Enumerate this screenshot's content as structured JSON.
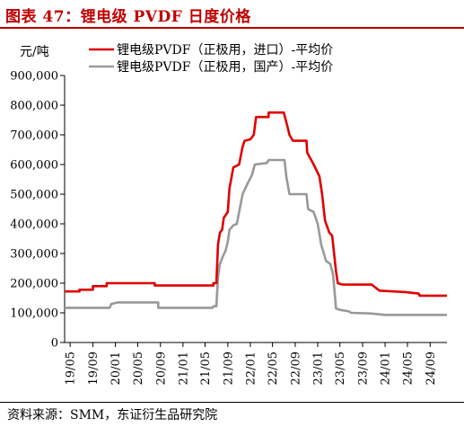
{
  "figure": {
    "title": "图表 47：锂电级 PVDF 日度价格",
    "source": "资料来源：SMM，东证衍生品研究院"
  },
  "chart_data": {
    "type": "line",
    "title": "图表 47：锂电级 PVDF 日度价格",
    "ylabel": "元/吨",
    "ylim": [
      0,
      900000
    ],
    "yticks": [
      0,
      100000,
      200000,
      300000,
      400000,
      500000,
      600000,
      700000,
      800000,
      900000
    ],
    "ytick_labels": [
      "0",
      "100,000",
      "200,000",
      "300,000",
      "400,000",
      "500,000",
      "600,000",
      "700,000",
      "800,000",
      "900,000"
    ],
    "x_axis": {
      "type": "date",
      "range": [
        "2019-04",
        "2024-12"
      ]
    },
    "xticks": [
      "19/05",
      "19/09",
      "20/01",
      "20/05",
      "20/09",
      "21/01",
      "21/05",
      "21/09",
      "22/01",
      "22/05",
      "22/09",
      "23/01",
      "23/05",
      "23/09",
      "24/01",
      "24/05",
      "24/09"
    ],
    "xtick_dates": [
      "2019-05",
      "2019-09",
      "2020-01",
      "2020-05",
      "2020-09",
      "2021-01",
      "2021-05",
      "2021-09",
      "2022-01",
      "2022-05",
      "2022-09",
      "2023-01",
      "2023-05",
      "2023-09",
      "2024-01",
      "2024-05",
      "2024-09"
    ],
    "grid": false,
    "legend": "top-left",
    "series": [
      {
        "name": "锂电级PVDF（正极用，进口）-平均价",
        "color": "#e00000",
        "points": [
          [
            "2019-04-01",
            172000
          ],
          [
            "2019-06-20",
            172000
          ],
          [
            "2019-06-20",
            178000
          ],
          [
            "2019-09-01",
            178000
          ],
          [
            "2019-09-01",
            190000
          ],
          [
            "2019-11-15",
            190000
          ],
          [
            "2019-11-15",
            200000
          ],
          [
            "2020-08-01",
            200000
          ],
          [
            "2020-08-01",
            192000
          ],
          [
            "2021-06-15",
            192000
          ],
          [
            "2021-06-15",
            200000
          ],
          [
            "2021-07-01",
            200000
          ],
          [
            "2021-07-10",
            330000
          ],
          [
            "2021-07-20",
            370000
          ],
          [
            "2021-08-01",
            380000
          ],
          [
            "2021-08-10",
            420000
          ],
          [
            "2021-09-01",
            440000
          ],
          [
            "2021-09-10",
            520000
          ],
          [
            "2021-10-01",
            590000
          ],
          [
            "2021-11-01",
            600000
          ],
          [
            "2021-11-20",
            660000
          ],
          [
            "2021-12-01",
            680000
          ],
          [
            "2022-01-01",
            685000
          ],
          [
            "2022-01-20",
            700000
          ],
          [
            "2022-02-01",
            760000
          ],
          [
            "2022-04-10",
            760000
          ],
          [
            "2022-04-10",
            775000
          ],
          [
            "2022-07-01",
            775000
          ],
          [
            "2022-07-20",
            730000
          ],
          [
            "2022-08-01",
            700000
          ],
          [
            "2022-08-20",
            680000
          ],
          [
            "2022-11-01",
            680000
          ],
          [
            "2022-11-05",
            640000
          ],
          [
            "2022-12-10",
            600000
          ],
          [
            "2023-01-10",
            560000
          ],
          [
            "2023-01-25",
            500000
          ],
          [
            "2023-02-10",
            410000
          ],
          [
            "2023-03-05",
            370000
          ],
          [
            "2023-03-20",
            360000
          ],
          [
            "2023-04-10",
            240000
          ],
          [
            "2023-04-20",
            200000
          ],
          [
            "2023-05-15",
            195000
          ],
          [
            "2023-10-20",
            195000
          ],
          [
            "2023-11-10",
            185000
          ],
          [
            "2023-12-01",
            175000
          ],
          [
            "2024-04-20",
            170000
          ],
          [
            "2024-07-01",
            165000
          ],
          [
            "2024-07-05",
            158000
          ],
          [
            "2024-12-01",
            158000
          ]
        ]
      },
      {
        "name": "锂电级PVDF（正极用，国产）-平均价",
        "color": "#999999",
        "points": [
          [
            "2019-04-01",
            117000
          ],
          [
            "2019-12-01",
            117000
          ],
          [
            "2019-12-10",
            130000
          ],
          [
            "2020-01-15",
            135000
          ],
          [
            "2020-08-20",
            135000
          ],
          [
            "2020-08-20",
            117000
          ],
          [
            "2021-06-10",
            117000
          ],
          [
            "2021-06-15",
            122000
          ],
          [
            "2021-07-01",
            122000
          ],
          [
            "2021-07-10",
            220000
          ],
          [
            "2021-07-20",
            265000
          ],
          [
            "2021-08-05",
            290000
          ],
          [
            "2021-08-20",
            310000
          ],
          [
            "2021-09-01",
            340000
          ],
          [
            "2021-09-10",
            380000
          ],
          [
            "2021-10-01",
            395000
          ],
          [
            "2021-10-20",
            400000
          ],
          [
            "2021-11-20",
            500000
          ],
          [
            "2021-12-20",
            540000
          ],
          [
            "2022-01-10",
            565000
          ],
          [
            "2022-01-25",
            600000
          ],
          [
            "2022-04-01",
            605000
          ],
          [
            "2022-04-10",
            615000
          ],
          [
            "2022-07-05",
            615000
          ],
          [
            "2022-07-15",
            560000
          ],
          [
            "2022-08-01",
            500000
          ],
          [
            "2022-11-01",
            500000
          ],
          [
            "2022-11-10",
            450000
          ],
          [
            "2022-12-10",
            440000
          ],
          [
            "2023-01-01",
            400000
          ],
          [
            "2023-01-20",
            330000
          ],
          [
            "2023-02-15",
            275000
          ],
          [
            "2023-03-10",
            265000
          ],
          [
            "2023-03-25",
            230000
          ],
          [
            "2023-04-10",
            115000
          ],
          [
            "2023-05-01",
            110000
          ],
          [
            "2023-06-20",
            105000
          ],
          [
            "2023-06-30",
            100000
          ],
          [
            "2023-10-15",
            98000
          ],
          [
            "2024-01-01",
            93000
          ],
          [
            "2024-12-01",
            93000
          ]
        ]
      }
    ]
  }
}
